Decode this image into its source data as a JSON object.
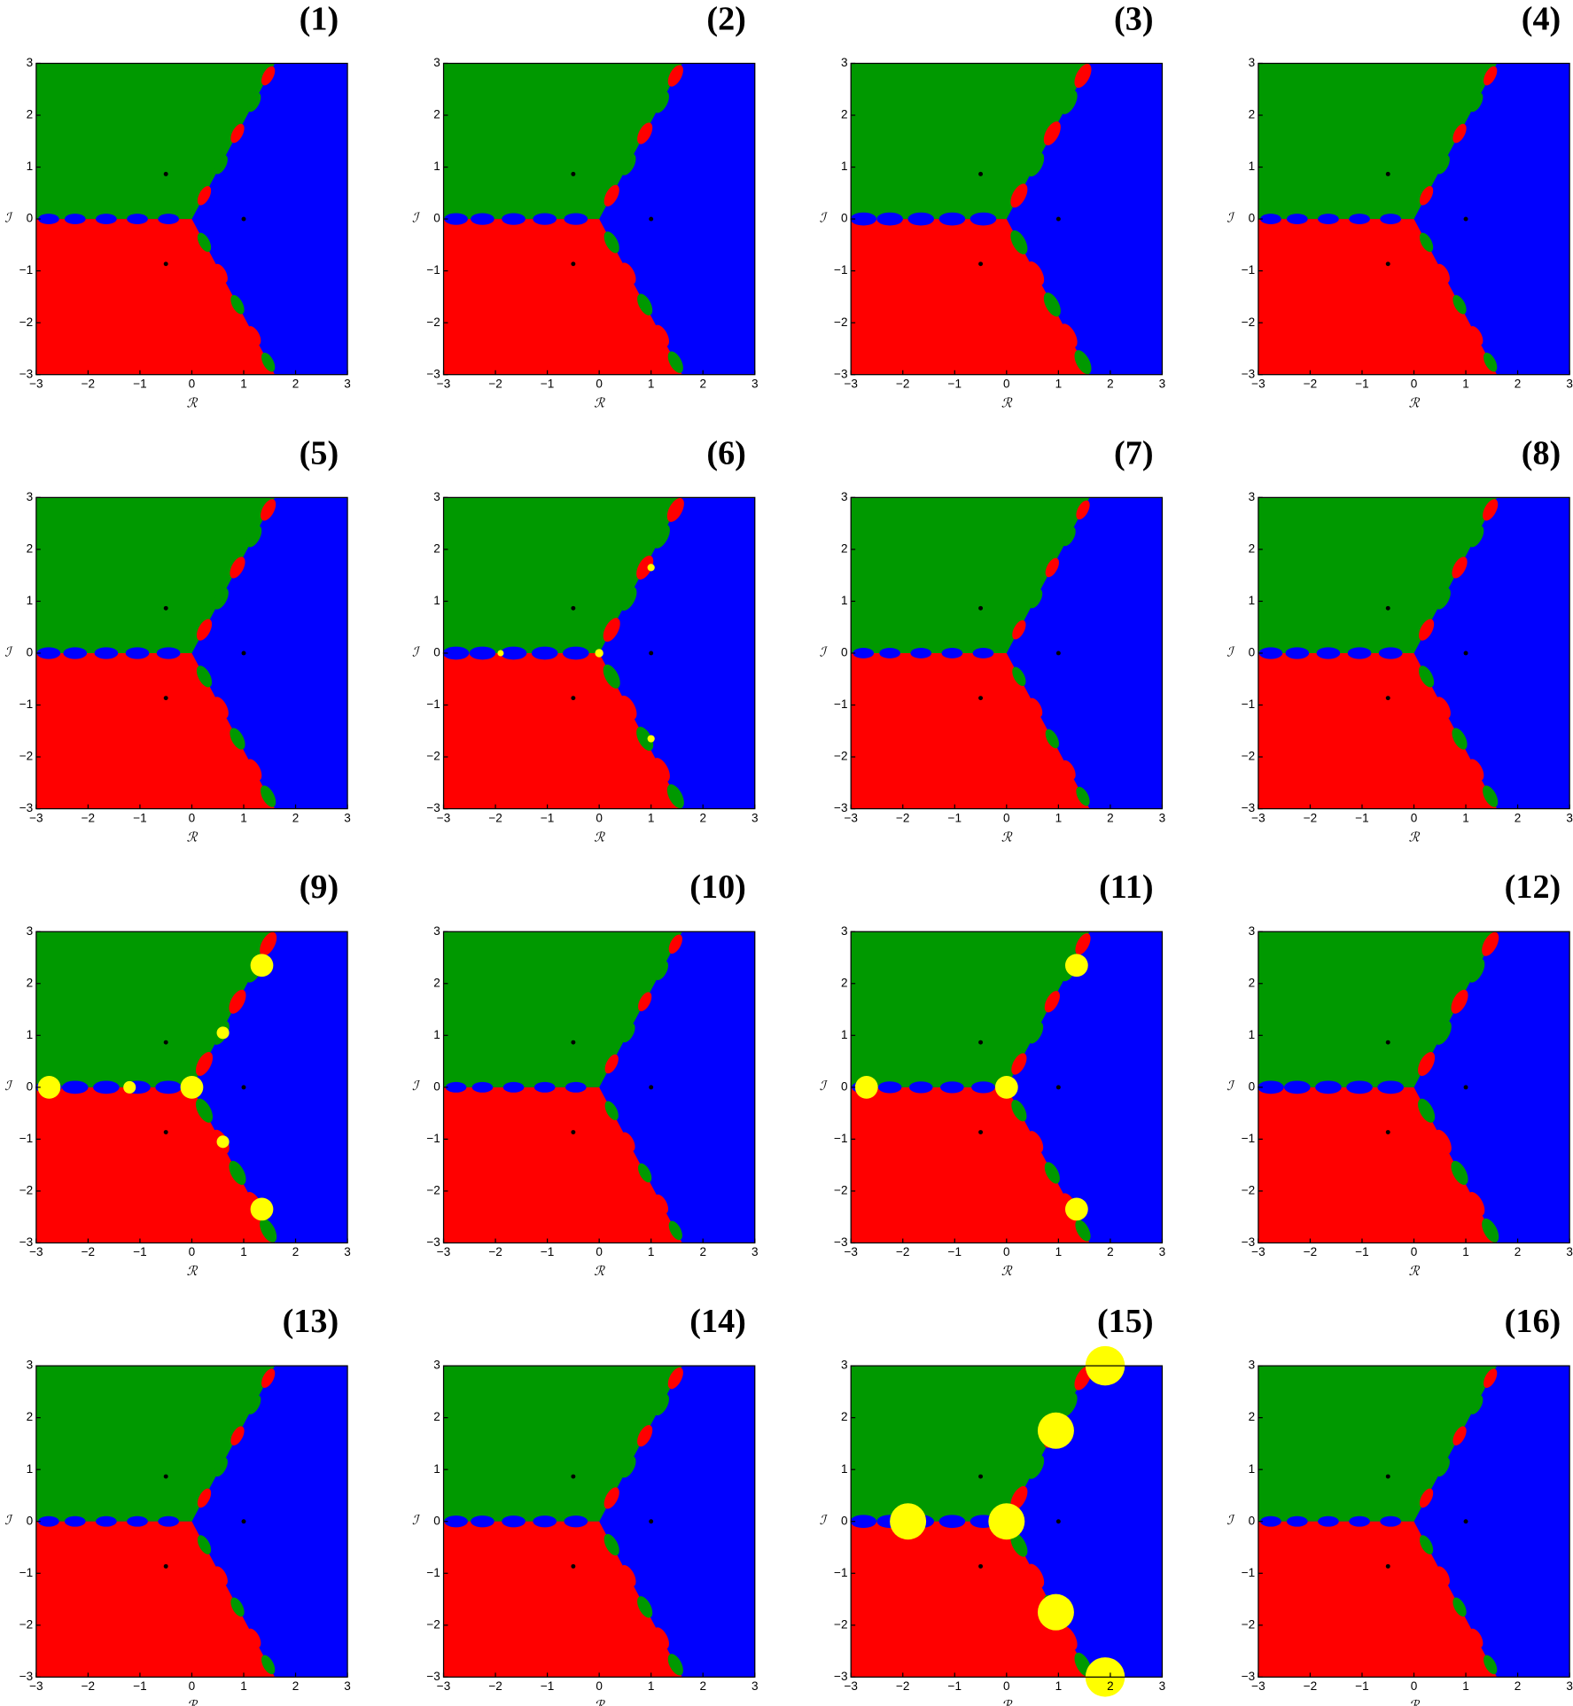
{
  "panels": [
    {
      "label": "(1)"
    },
    {
      "label": "(2)"
    },
    {
      "label": "(3)"
    },
    {
      "label": "(4)"
    },
    {
      "label": "(5)"
    },
    {
      "label": "(6)"
    },
    {
      "label": "(7)"
    },
    {
      "label": "(8)"
    },
    {
      "label": "(9)"
    },
    {
      "label": "(10)"
    },
    {
      "label": "(11)"
    },
    {
      "label": "(12)"
    },
    {
      "label": "(13)"
    },
    {
      "label": "(14)"
    },
    {
      "label": "(15)"
    },
    {
      "label": "(16)"
    }
  ],
  "axes": {
    "xlim": [
      -3,
      3
    ],
    "ylim": [
      -3,
      3
    ],
    "xticks": [
      {
        "value": -3,
        "label": "−3"
      },
      {
        "value": -2,
        "label": "−2"
      },
      {
        "value": -1,
        "label": "−1"
      },
      0,
      1,
      2,
      3
    ],
    "yticks": [
      {
        "value": -3,
        "label": "−3"
      },
      {
        "value": -2,
        "label": "−2"
      },
      {
        "value": -1,
        "label": "−1"
      },
      0,
      1,
      2,
      3
    ],
    "xlabel": "ℛ",
    "ylabel": "ℐ"
  }
}
